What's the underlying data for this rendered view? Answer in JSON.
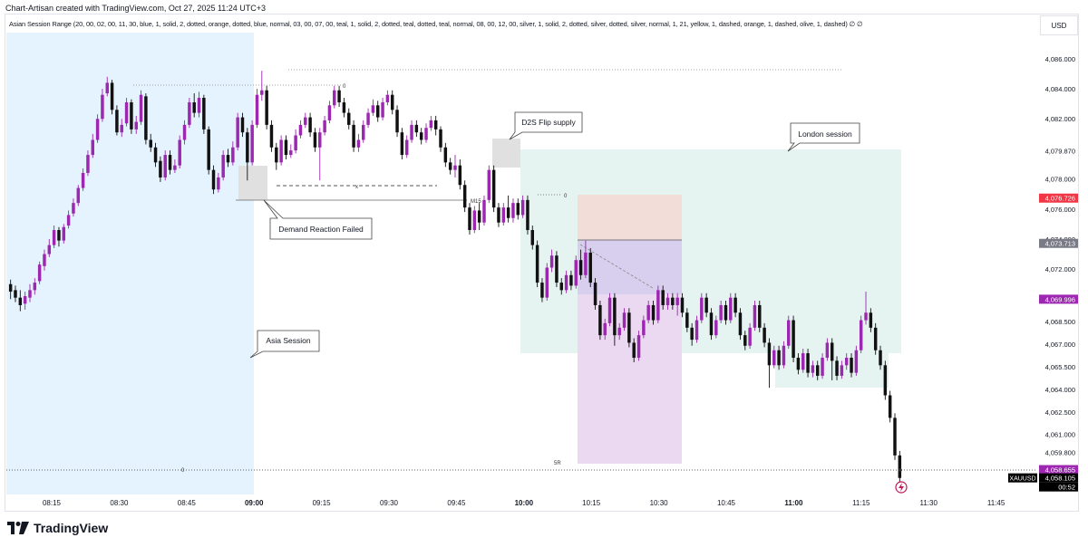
{
  "header": {
    "created_by": "Chart-Artisan created with TradingView.com, Oct 27, 2025 11:24 UTC+3",
    "indicator": "Asian Session Range (20, 00, 02, 00, 11, 30, blue, 1, solid, 2, dotted, orange, dotted, blue, normal, 03, 00, 07, 00, teal, 1, solid, 2, dotted, teal, dotted, teal, normal, 08, 00, 12, 00, silver, 1, solid, 2, dotted, silver, dotted, silver, normal, 1, 21, yellow, 1, dashed, orange, 1, dashed, olive, 1, dashed)  ∅  ∅",
    "currency": "USD"
  },
  "footer": {
    "brand": "TradingView"
  },
  "chart_data": {
    "type": "candlestick",
    "symbol": "XAUUSD",
    "ylim": [
      4057.0,
      4087.5
    ],
    "y_ticks": [
      "4,086.000",
      "4,084.000",
      "4,082.000",
      "4,078.000",
      "4,076.000",
      "4,074.000",
      "4,072.000",
      "4,068.500",
      "4,067.000",
      "4,065.500",
      "4,064.000",
      "4,062.500",
      "4,061.000",
      "4,059.800"
    ],
    "x_ticks": [
      {
        "label": "08:15",
        "bold": false
      },
      {
        "label": "08:30",
        "bold": false
      },
      {
        "label": "08:45",
        "bold": false
      },
      {
        "label": "09:00",
        "bold": true
      },
      {
        "label": "09:15",
        "bold": false
      },
      {
        "label": "09:30",
        "bold": false
      },
      {
        "label": "09:45",
        "bold": false
      },
      {
        "label": "10:00",
        "bold": true
      },
      {
        "label": "10:15",
        "bold": false
      },
      {
        "label": "10:30",
        "bold": false
      },
      {
        "label": "10:45",
        "bold": false
      },
      {
        "label": "11:00",
        "bold": true
      },
      {
        "label": "11:15",
        "bold": false
      },
      {
        "label": "11:30",
        "bold": false
      },
      {
        "label": "11:45",
        "bold": false
      }
    ],
    "price_labels": [
      {
        "value": "4,079.870",
        "kind": "plain"
      },
      {
        "value": "4,076.726",
        "kind": "red"
      },
      {
        "value": "4,073.713",
        "kind": "gray"
      },
      {
        "value": "4,069.996",
        "kind": "purple"
      },
      {
        "value": "4,058.655",
        "kind": "purple"
      },
      {
        "value": "4,058.105",
        "kind": "black"
      },
      {
        "value": "00:52",
        "kind": "black"
      }
    ],
    "symbol_tag": "XAUUSD",
    "annotations": [
      {
        "text": "Asia Session"
      },
      {
        "text": "Demand Reaction Failed"
      },
      {
        "text": "D2S Flip supply"
      },
      {
        "text": "London session"
      }
    ],
    "small_labels": {
      "m15": "M15",
      "zero_a": "0",
      "zero_b": "0",
      "zero_c": "0",
      "five_r": "5R",
      "x_mark": "x"
    },
    "candles": [
      [
        4071,
        4070.5,
        4071.3,
        4070
      ],
      [
        4070.6,
        4070.1,
        4070.9,
        4069.8
      ],
      [
        4070.1,
        4069.6,
        4070.6,
        4069.2
      ],
      [
        4069.7,
        4070.2,
        4070.5,
        4069.3
      ],
      [
        4070.1,
        4070.6,
        4071,
        4069.8
      ],
      [
        4070.6,
        4071.1,
        4071.4,
        4070.3
      ],
      [
        4071.2,
        4072.3,
        4072.5,
        4071
      ],
      [
        4072.2,
        4073,
        4073.3,
        4071.9
      ],
      [
        4073,
        4073.6,
        4074,
        4072.8
      ],
      [
        4073.6,
        4074.6,
        4074.9,
        4073.4
      ],
      [
        4074.6,
        4073.9,
        4074.8,
        4073.5
      ],
      [
        4073.9,
        4074.8,
        4075,
        4073.7
      ],
      [
        4074.9,
        4075.6,
        4075.9,
        4074.7
      ],
      [
        4075.7,
        4076.4,
        4076.7,
        4075.5
      ],
      [
        4076.4,
        4077.4,
        4077.6,
        4076.2
      ],
      [
        4077.4,
        4078.4,
        4078.7,
        4077.2
      ],
      [
        4078.4,
        4079.6,
        4079.9,
        4078.2
      ],
      [
        4079.6,
        4080.6,
        4081,
        4079.4
      ],
      [
        4080.6,
        4082,
        4082.3,
        4080.4
      ],
      [
        4082,
        4083.6,
        4084,
        4081.8
      ],
      [
        4083.7,
        4084.4,
        4084.8,
        4083.5
      ],
      [
        4084.4,
        4082.6,
        4084.6,
        4082.3
      ],
      [
        4082.6,
        4081.1,
        4082.9,
        4080.9
      ],
      [
        4081.1,
        4081.6,
        4082,
        4080.8
      ],
      [
        4081.7,
        4083.1,
        4083.4,
        4081.5
      ],
      [
        4083.1,
        4081.3,
        4083.3,
        4081
      ],
      [
        4081.3,
        4081.8,
        4082.2,
        4081
      ],
      [
        4081.8,
        4083.6,
        4083.9,
        4081.6
      ],
      [
        4083.5,
        4080.6,
        4083.7,
        4080.3
      ],
      [
        4080.6,
        4080.1,
        4081,
        4079.8
      ],
      [
        4080.1,
        4079.1,
        4080.4,
        4078.8
      ],
      [
        4079.2,
        4078.1,
        4079.5,
        4077.8
      ],
      [
        4078.1,
        4079.6,
        4079.9,
        4077.9
      ],
      [
        4079.6,
        4078.6,
        4079.9,
        4078.3
      ],
      [
        4078.6,
        4078.9,
        4079.3,
        4078.4
      ],
      [
        4078.9,
        4080.6,
        4080.9,
        4078.7
      ],
      [
        4080.6,
        4081.6,
        4081.9,
        4080.3
      ],
      [
        4081.6,
        4083.1,
        4083.4,
        4081.4
      ],
      [
        4083.1,
        4082.4,
        4083.7,
        4082.1
      ],
      [
        4082.4,
        4083.4,
        4083.8,
        4082.1
      ],
      [
        4083.4,
        4081.3,
        4083.6,
        4081
      ],
      [
        4081.3,
        4078.6,
        4081.5,
        4078.3
      ],
      [
        4078.6,
        4077.3,
        4078.9,
        4077
      ],
      [
        4077.3,
        4078.1,
        4078.4,
        4077.1
      ],
      [
        4078.1,
        4079.6,
        4079.9,
        4077.9
      ],
      [
        4079.6,
        4079.1,
        4080,
        4078.8
      ],
      [
        4079.1,
        4080.1,
        4080.5,
        4078.9
      ],
      [
        4080.1,
        4082.1,
        4082.4,
        4079.9
      ],
      [
        4082.1,
        4081.1,
        4082.4,
        4080.8
      ],
      [
        4081.1,
        4079.1,
        4081.4,
        4077.9
      ],
      [
        4079.1,
        4081.6,
        4081.9,
        4078.9
      ],
      [
        4081.6,
        4083.6,
        4084,
        4081.4
      ],
      [
        4083.6,
        4083.9,
        4085.2,
        4083.2
      ],
      [
        4083.9,
        4081.6,
        4084.2,
        4081.3
      ],
      [
        4081.6,
        4080.1,
        4081.9,
        4079.8
      ],
      [
        4080.1,
        4079.1,
        4080.4,
        4078.6
      ],
      [
        4079.1,
        4080.6,
        4080.9,
        4078.9
      ],
      [
        4080.6,
        4079.6,
        4080.9,
        4079.3
      ],
      [
        4079.6,
        4079.9,
        4080.3,
        4079.4
      ],
      [
        4079.9,
        4080.9,
        4081.3,
        4079.7
      ],
      [
        4080.9,
        4081.6,
        4081.9,
        4080.7
      ],
      [
        4081.6,
        4082.1,
        4082.4,
        4081.4
      ],
      [
        4082.1,
        4081.1,
        4082.4,
        4080.8
      ],
      [
        4081.1,
        4080.1,
        4081.4,
        4079.8
      ],
      [
        4080.1,
        4081.1,
        4081.4,
        4077.9
      ],
      [
        4081.1,
        4081.9,
        4082.2,
        4080.9
      ],
      [
        4081.9,
        4082.9,
        4083.2,
        4081.7
      ],
      [
        4082.9,
        4083.9,
        4084.2,
        4082.7
      ],
      [
        4083.9,
        4083.1,
        4084.2,
        4082.8
      ],
      [
        4083.1,
        4082.4,
        4083.4,
        4082.1
      ],
      [
        4082.4,
        4081.6,
        4082.7,
        4081.3
      ],
      [
        4081.6,
        4080.1,
        4081.9,
        4079.8
      ],
      [
        4080.1,
        4080.6,
        4081,
        4079.8
      ],
      [
        4080.6,
        4081.6,
        4081.9,
        4080.4
      ],
      [
        4081.6,
        4082.4,
        4082.7,
        4081.4
      ],
      [
        4082.4,
        4082.9,
        4083.3,
        4082.2
      ],
      [
        4082.9,
        4082.1,
        4083.2,
        4081.8
      ],
      [
        4082.1,
        4083.1,
        4083.4,
        4081.9
      ],
      [
        4083.1,
        4083.6,
        4083.9,
        4082.9
      ],
      [
        4083.6,
        4082.6,
        4083.9,
        4082.3
      ],
      [
        4082.6,
        4081.1,
        4082.9,
        4080.8
      ],
      [
        4081.1,
        4079.6,
        4081.4,
        4079.3
      ],
      [
        4079.6,
        4080.6,
        4080.9,
        4079.4
      ],
      [
        4080.6,
        4081.6,
        4081.9,
        4080.4
      ],
      [
        4081.6,
        4081.1,
        4081.9,
        4080.8
      ],
      [
        4081.1,
        4080.6,
        4081.4,
        4080.3
      ],
      [
        4080.6,
        4081.4,
        4081.7,
        4080.4
      ],
      [
        4081.4,
        4081.9,
        4082.2,
        4081.2
      ],
      [
        4081.9,
        4081.3,
        4082.2,
        4080.9
      ],
      [
        4081.3,
        4080.1,
        4081.5,
        4079.8
      ],
      [
        4080.1,
        4079.1,
        4080.4,
        4078.8
      ],
      [
        4079.1,
        4078.6,
        4079.4,
        4078.3
      ],
      [
        4078.6,
        4078.9,
        4079.6,
        4078.1
      ],
      [
        4078.9,
        4077.6,
        4079.3,
        4077.3
      ],
      [
        4077.6,
        4076.1,
        4077.9,
        4075.8
      ],
      [
        4076.1,
        4074.6,
        4076.4,
        4074.3
      ],
      [
        4074.6,
        4075.9,
        4076.2,
        4074.4
      ],
      [
        4075.9,
        4075.1,
        4076.4,
        4074.6
      ],
      [
        4075.1,
        4076.6,
        4076.9,
        4074.9
      ],
      [
        4076.6,
        4078.6,
        4078.9,
        4076.4
      ],
      [
        4078.6,
        4076.1,
        4078.9,
        4075.8
      ],
      [
        4076.1,
        4075.1,
        4076.4,
        4074.8
      ],
      [
        4075.1,
        4076.1,
        4076.4,
        4074.9
      ],
      [
        4076.1,
        4075.4,
        4076.9,
        4075.1
      ],
      [
        4075.4,
        4076.4,
        4076.7,
        4075.1
      ],
      [
        4076.4,
        4075.6,
        4076.7,
        4075.3
      ],
      [
        4075.6,
        4076.6,
        4076.9,
        4075.4
      ],
      [
        4076.6,
        4074.6,
        4076.9,
        4074.3
      ],
      [
        4074.6,
        4073.6,
        4074.9,
        4073.3
      ],
      [
        4073.6,
        4071.1,
        4073.9,
        4070.8
      ],
      [
        4071.1,
        4070.1,
        4071.4,
        4069.8
      ],
      [
        4070.1,
        4072.1,
        4072.4,
        4069.9
      ],
      [
        4072.1,
        4072.9,
        4073.3,
        4071.8
      ],
      [
        4072.9,
        4071.1,
        4073.2,
        4070.8
      ],
      [
        4071.1,
        4070.6,
        4071.4,
        4070.3
      ],
      [
        4070.6,
        4071.6,
        4071.9,
        4070.4
      ],
      [
        4071.6,
        4070.9,
        4071.9,
        4070.6
      ],
      [
        4070.9,
        4072.6,
        4072.9,
        4070.7
      ],
      [
        4072.6,
        4071.6,
        4073.3,
        4071.3
      ],
      [
        4071.6,
        4073.1,
        4073.9,
        4071.4
      ],
      [
        4073.1,
        4071.1,
        4073.4,
        4070.8
      ],
      [
        4071.1,
        4069.6,
        4071.4,
        4069.3
      ],
      [
        4069.6,
        4067.6,
        4069.9,
        4067.3
      ],
      [
        4067.6,
        4068.4,
        4068.7,
        4067.3
      ],
      [
        4068.4,
        4070.1,
        4070.4,
        4068.2
      ],
      [
        4070.1,
        4067.6,
        4070.4,
        4066.9
      ],
      [
        4067.6,
        4068.1,
        4068.4,
        4067.3
      ],
      [
        4068.1,
        4069.1,
        4069.4,
        4067.9
      ],
      [
        4069.1,
        4067.1,
        4069.4,
        4066.8
      ],
      [
        4067.1,
        4066.1,
        4067.4,
        4065.8
      ],
      [
        4066.1,
        4067.6,
        4067.9,
        4065.9
      ],
      [
        4067.6,
        4068.6,
        4068.9,
        4067.4
      ],
      [
        4068.6,
        4069.6,
        4069.9,
        4068.4
      ],
      [
        4069.6,
        4068.6,
        4069.9,
        4068.3
      ],
      [
        4068.6,
        4070.6,
        4070.9,
        4068.4
      ],
      [
        4070.6,
        4069.6,
        4070.9,
        4069.3
      ],
      [
        4069.6,
        4070.1,
        4070.4,
        4069.3
      ],
      [
        4070.1,
        4069.6,
        4070.4,
        4069.3
      ],
      [
        4069.6,
        4070.1,
        4070.4,
        4068.9
      ],
      [
        4070.1,
        4069.1,
        4070.4,
        4068.8
      ],
      [
        4069.1,
        4068.1,
        4069.4,
        4067.8
      ],
      [
        4068.1,
        4067.3,
        4068.4,
        4066.9
      ],
      [
        4067.3,
        4068.6,
        4068.9,
        4067.1
      ],
      [
        4068.6,
        4070.1,
        4070.4,
        4068.4
      ],
      [
        4070.1,
        4069.1,
        4070.4,
        4068.8
      ],
      [
        4069.1,
        4067.6,
        4069.4,
        4067.3
      ],
      [
        4067.6,
        4068.6,
        4068.9,
        4067.4
      ],
      [
        4068.6,
        4069.6,
        4069.9,
        4068.4
      ],
      [
        4069.6,
        4068.6,
        4069.9,
        4068.3
      ],
      [
        4068.6,
        4070.1,
        4070.4,
        4068.4
      ],
      [
        4070.1,
        4069.1,
        4070.4,
        4068.8
      ],
      [
        4069.1,
        4067.6,
        4069.4,
        4067.3
      ],
      [
        4067.6,
        4066.9,
        4067.9,
        4066.6
      ],
      [
        4066.9,
        4068.1,
        4068.4,
        4066.7
      ],
      [
        4068.1,
        4069.6,
        4069.9,
        4067.9
      ],
      [
        4069.6,
        4068.1,
        4069.9,
        4067.8
      ],
      [
        4068.1,
        4067.1,
        4068.4,
        4066.8
      ],
      [
        4067.1,
        4065.6,
        4067.4,
        4064.1
      ],
      [
        4065.6,
        4066.6,
        4066.9,
        4065.4
      ],
      [
        4066.6,
        4065.6,
        4066.9,
        4065.3
      ],
      [
        4065.6,
        4066.9,
        4067.2,
        4065.4
      ],
      [
        4066.9,
        4068.6,
        4068.9,
        4066.7
      ],
      [
        4068.6,
        4066.1,
        4068.9,
        4065.8
      ],
      [
        4066.1,
        4065.3,
        4066.4,
        4065
      ],
      [
        4065.3,
        4066.4,
        4066.7,
        4065.1
      ],
      [
        4066.4,
        4065.1,
        4066.7,
        4064.8
      ],
      [
        4065.1,
        4065.6,
        4065.9,
        4064.8
      ],
      [
        4065.6,
        4064.9,
        4065.9,
        4064.6
      ],
      [
        4064.9,
        4066.1,
        4066.4,
        4064.7
      ],
      [
        4066.1,
        4067.1,
        4067.4,
        4065.9
      ],
      [
        4067.1,
        4065.9,
        4067.4,
        4064.6
      ],
      [
        4065.9,
        4064.9,
        4066.2,
        4064.6
      ],
      [
        4064.9,
        4065.6,
        4065.9,
        4064.7
      ],
      [
        4065.6,
        4066.1,
        4066.4,
        4065.3
      ],
      [
        4066.1,
        4065.1,
        4066.4,
        4064.8
      ],
      [
        4065.1,
        4066.6,
        4066.9,
        4064.9
      ],
      [
        4066.6,
        4068.6,
        4068.9,
        4066.4
      ],
      [
        4068.6,
        4069.1,
        4070.5,
        4068.3
      ],
      [
        4069.1,
        4068.1,
        4069.4,
        4067.8
      ],
      [
        4068.1,
        4066.6,
        4068.4,
        4066.3
      ],
      [
        4066.6,
        4065.6,
        4066.9,
        4065.3
      ],
      [
        4065.6,
        4063.6,
        4065.9,
        4063.3
      ],
      [
        4063.6,
        4062.1,
        4063.9,
        4061.8
      ],
      [
        4062.1,
        4059.6,
        4062.4,
        4059.3
      ],
      [
        4059.6,
        4058.1,
        4059.9,
        4057.8
      ]
    ]
  }
}
